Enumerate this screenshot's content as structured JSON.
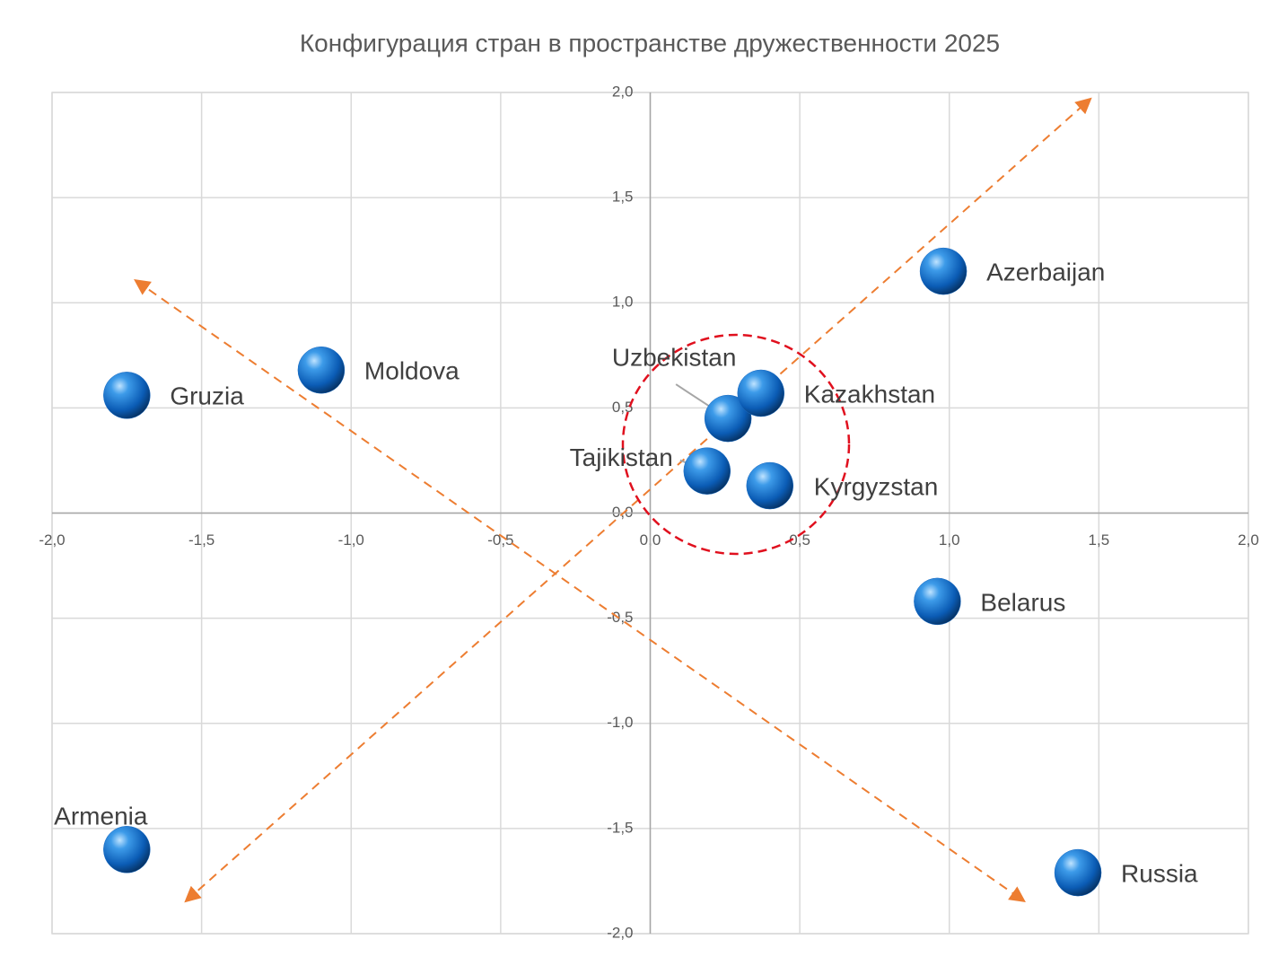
{
  "chart_data": {
    "type": "scatter",
    "title": "Конфигурация стран в пространстве дружественности 2025",
    "labels": [
      "Gruzia",
      "Moldova",
      "Azerbaijan",
      "Uzbekistan",
      "Kazakhstan",
      "Tajikistan",
      "Kyrgyzstan",
      "Belarus",
      "Armenia",
      "Russia"
    ],
    "x": [
      -1.75,
      -1.1,
      0.98,
      0.26,
      0.37,
      0.19,
      0.4,
      0.96,
      -1.75,
      1.43
    ],
    "y": [
      0.56,
      0.68,
      1.15,
      0.45,
      0.57,
      0.2,
      0.13,
      -0.42,
      -1.6,
      -1.71
    ],
    "color": "#1f6fc5",
    "xlim": [
      -2,
      2
    ],
    "ylim": [
      -2,
      2
    ],
    "xticks": [
      {
        "value": -2,
        "label": "-2,0"
      },
      {
        "value": -1.5,
        "label": "-1,5"
      },
      {
        "value": -1,
        "label": "-1,0"
      },
      {
        "value": -0.5,
        "label": "-0,5"
      },
      {
        "value": 0,
        "label": "0,0"
      },
      {
        "value": 0.5,
        "label": "0,5"
      },
      {
        "value": 1,
        "label": "1,0"
      },
      {
        "value": 1.5,
        "label": "1,5"
      },
      {
        "value": 2,
        "label": "2,0"
      }
    ],
    "yticks": [
      {
        "value": -2,
        "label": "-2,0"
      },
      {
        "value": -1.5,
        "label": "-1,5"
      },
      {
        "value": -1,
        "label": "-1,0"
      },
      {
        "value": -0.5,
        "label": "-0,5"
      },
      {
        "value": 0,
        "label": "0,0"
      },
      {
        "value": 0.5,
        "label": "0,5"
      },
      {
        "value": 1,
        "label": "1,0"
      },
      {
        "value": 1.5,
        "label": "1,5"
      },
      {
        "value": 2,
        "label": "2,0"
      }
    ],
    "grid": true
  }
}
